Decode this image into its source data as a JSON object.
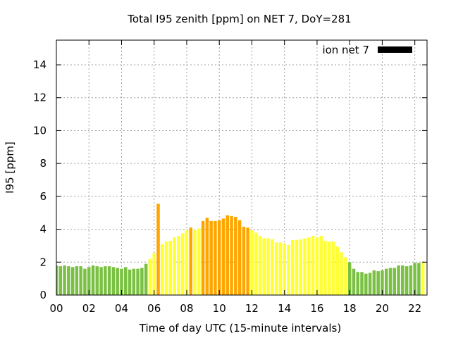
{
  "chart_data": {
    "type": "bar",
    "title": "Total I95 zenith [ppm] on NET 7, DoY=281",
    "xlabel": "Time of day UTC (15-minute intervals)",
    "ylabel": "I95 [ppm]",
    "xlim": [
      0,
      22.75
    ],
    "ylim": [
      0,
      15.5
    ],
    "x_tick_labels": [
      "00",
      "02",
      "04",
      "06",
      "08",
      "10",
      "12",
      "14",
      "16",
      "18",
      "20",
      "22"
    ],
    "y_tick_labels": [
      "0",
      "2",
      "4",
      "6",
      "8",
      "10",
      "12",
      "14"
    ],
    "grid": true,
    "legend": {
      "label": "ion net 7",
      "color": "#000000",
      "position": "top-right"
    },
    "colors": {
      "green": "#7ac143",
      "yellow": "#ffff33",
      "orange": "#ffa500"
    },
    "interval_hours": 0.25,
    "values": [
      1.8,
      1.75,
      1.8,
      1.75,
      1.7,
      1.75,
      1.75,
      1.6,
      1.7,
      1.8,
      1.75,
      1.7,
      1.75,
      1.75,
      1.7,
      1.65,
      1.6,
      1.7,
      1.55,
      1.6,
      1.6,
      1.65,
      1.9,
      2.2,
      2.55,
      5.55,
      3.1,
      3.25,
      3.3,
      3.5,
      3.6,
      3.75,
      3.95,
      4.1,
      3.95,
      4.05,
      4.5,
      4.7,
      4.5,
      4.5,
      4.55,
      4.65,
      4.85,
      4.8,
      4.75,
      4.55,
      4.15,
      4.1,
      3.95,
      3.8,
      3.6,
      3.45,
      3.45,
      3.4,
      3.2,
      3.2,
      3.15,
      3.05,
      3.35,
      3.35,
      3.4,
      3.45,
      3.5,
      3.6,
      3.5,
      3.6,
      3.3,
      3.25,
      3.25,
      2.95,
      2.6,
      2.3,
      2.0,
      1.6,
      1.4,
      1.4,
      1.3,
      1.35,
      1.5,
      1.45,
      1.5,
      1.6,
      1.65,
      1.65,
      1.8,
      1.8,
      1.75,
      1.8,
      1.95,
      1.95,
      2.0
    ],
    "bar_colors": [
      "green",
      "green",
      "green",
      "green",
      "green",
      "green",
      "green",
      "green",
      "green",
      "green",
      "green",
      "green",
      "green",
      "green",
      "green",
      "green",
      "green",
      "green",
      "green",
      "green",
      "green",
      "green",
      "green",
      "yellow",
      "yellow",
      "orange",
      "yellow",
      "yellow",
      "yellow",
      "yellow",
      "yellow",
      "yellow",
      "yellow",
      "orange",
      "yellow",
      "yellow",
      "orange",
      "orange",
      "orange",
      "orange",
      "orange",
      "orange",
      "orange",
      "orange",
      "orange",
      "orange",
      "orange",
      "orange",
      "yellow",
      "yellow",
      "yellow",
      "yellow",
      "yellow",
      "yellow",
      "yellow",
      "yellow",
      "yellow",
      "yellow",
      "yellow",
      "yellow",
      "yellow",
      "yellow",
      "yellow",
      "yellow",
      "yellow",
      "yellow",
      "yellow",
      "yellow",
      "yellow",
      "yellow",
      "yellow",
      "yellow",
      "green",
      "green",
      "green",
      "green",
      "green",
      "green",
      "green",
      "green",
      "green",
      "green",
      "green",
      "green",
      "green",
      "green",
      "green",
      "green",
      "green",
      "green",
      "yellow"
    ]
  }
}
